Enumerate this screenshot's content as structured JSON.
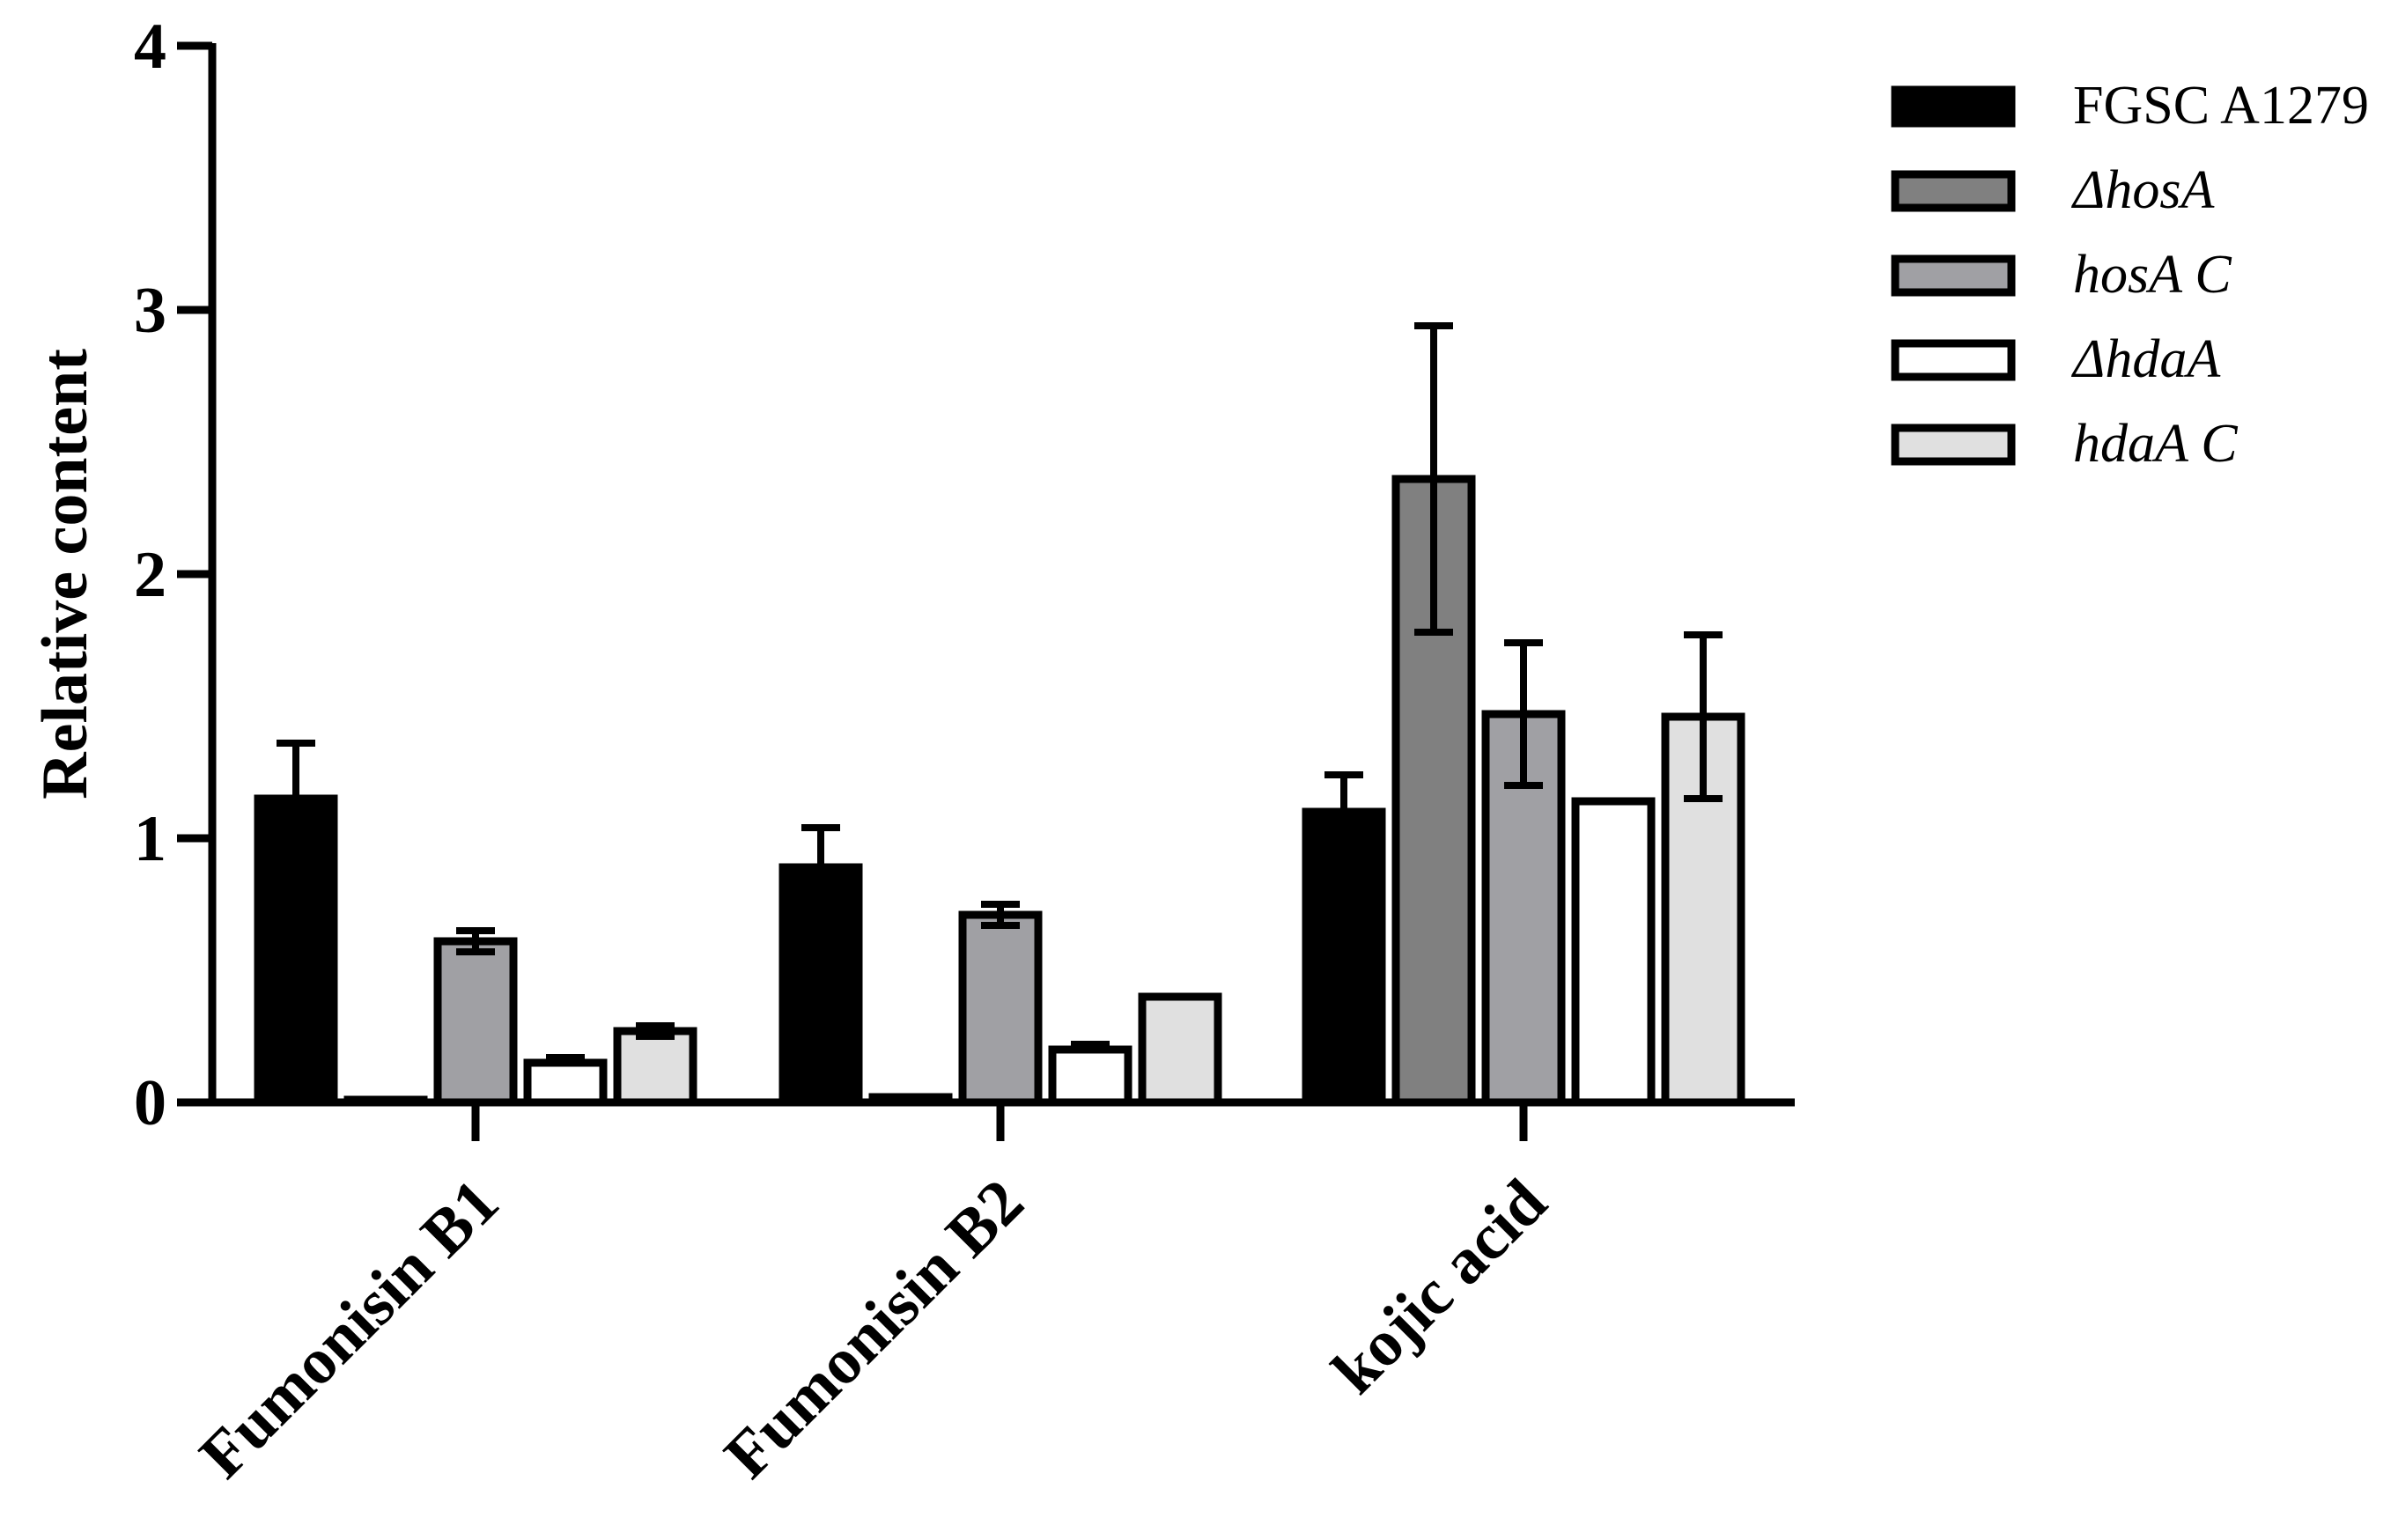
{
  "chart_data": {
    "type": "bar",
    "title": "",
    "xlabel": "",
    "ylabel": "Relative content",
    "ylim": [
      0,
      4
    ],
    "yticks": [
      0,
      1,
      2,
      3,
      4
    ],
    "grid": false,
    "legend_position": "top-right",
    "error_bars": true,
    "categories": [
      "Fumonisin B1",
      "Fumonisin B2",
      "kojic acid"
    ],
    "series": [
      {
        "name": "FGSC A1279",
        "italic": false,
        "color": "#000000",
        "values": [
          1.15,
          0.89,
          1.1
        ],
        "errors": [
          0.21,
          0.15,
          0.14
        ]
      },
      {
        "name": "ΔhosA",
        "italic": true,
        "color": "#808080",
        "values": [
          0.01,
          0.02,
          2.36
        ],
        "errors": [
          0.0,
          0.0,
          0.58
        ]
      },
      {
        "name": "hosA C",
        "italic": true,
        "color": "#a0a0a4",
        "values": [
          0.61,
          0.71,
          1.47
        ],
        "errors": [
          0.04,
          0.04,
          0.27
        ]
      },
      {
        "name": "ΔhdaA",
        "italic": true,
        "color": "#ffffff",
        "values": [
          0.15,
          0.2,
          1.14
        ],
        "errors": [
          0.02,
          0.02,
          0.0
        ]
      },
      {
        "name": "hdaA C",
        "italic": true,
        "color": "#e0e0e0",
        "values": [
          0.27,
          0.4,
          1.46
        ],
        "errors": [
          0.02,
          0.0,
          0.31
        ]
      }
    ]
  }
}
